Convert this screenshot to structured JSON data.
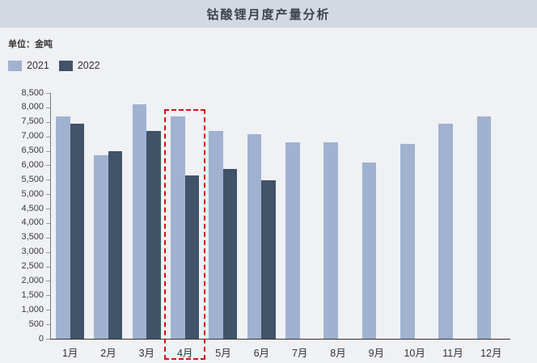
{
  "header": {
    "title": "钴酸锂月度产量分析"
  },
  "unit_label": "单位：金吨",
  "legend": [
    {
      "label": "2021",
      "color": "#a0b2d0"
    },
    {
      "label": "2022",
      "color": "#415369"
    }
  ],
  "colors": {
    "header_bg": "#d3d9e2",
    "page_bg": "#eff1f4",
    "series_2021": "#a0b2d0",
    "series_2022": "#415369",
    "highlight_red": "#cf1313",
    "axis_line": "#333333"
  },
  "chart_data": {
    "type": "bar",
    "title": "钴酸锂月度产量分析",
    "unit": "金吨",
    "categories": [
      "1月",
      "2月",
      "3月",
      "4月",
      "5月",
      "6月",
      "7月",
      "8月",
      "9月",
      "10月",
      "11月",
      "12月"
    ],
    "series": [
      {
        "name": "2021",
        "color": "#a0b2d0",
        "values": [
          7700,
          6350,
          8100,
          7700,
          7200,
          7070,
          6800,
          6800,
          6100,
          6740,
          7450,
          7700
        ]
      },
      {
        "name": "2022",
        "color": "#415369",
        "values": [
          7430,
          6500,
          7190,
          5650,
          5880,
          5480,
          null,
          null,
          null,
          null,
          null,
          null
        ]
      }
    ],
    "ylim": [
      0,
      8500
    ],
    "y_tick_step": 500,
    "y_tick_labels": [
      "0",
      "500",
      "1,000",
      "1,500",
      "2,000",
      "2,500",
      "3,000",
      "3,500",
      "4,000",
      "4,500",
      "5,000",
      "5,500",
      "6,000",
      "6,500",
      "7,000",
      "7,500",
      "8,000",
      "8,500"
    ],
    "xlabel": "",
    "ylabel": "",
    "grid": false,
    "legend_position": "top-left",
    "highlight": {
      "category": "4月",
      "category_index": 3,
      "style": "red-dashed-box",
      "color": "#cf1313"
    }
  }
}
